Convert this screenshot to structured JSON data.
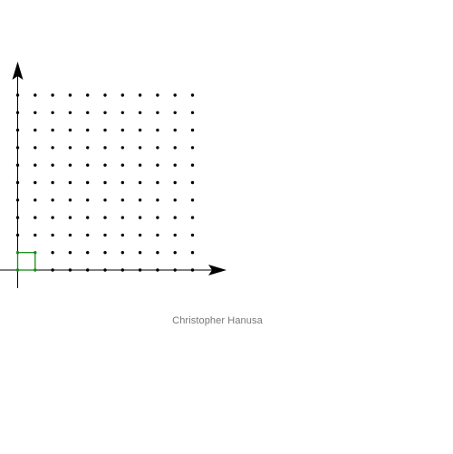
{
  "credit": "Christopher Hanusa",
  "colors": {
    "background": "#ffffff",
    "axes": "#000000",
    "dots": "#000000",
    "highlight": "#1a8a1a",
    "credit_text": "#777777"
  },
  "grid": {
    "columns": 11,
    "rows": 11,
    "x_range": [
      0,
      10
    ],
    "y_range": [
      0,
      10
    ]
  },
  "highlight_square": {
    "x": [
      0,
      1
    ],
    "y": [
      0,
      1
    ]
  }
}
